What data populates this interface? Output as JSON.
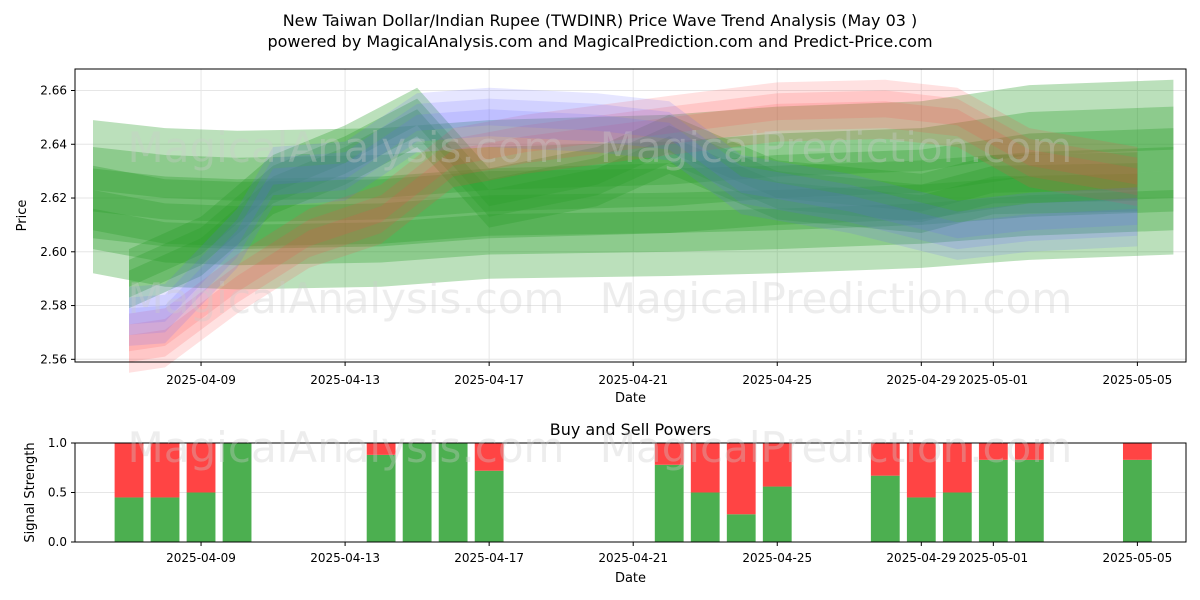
{
  "title_line1": "New Taiwan Dollar/Indian Rupee (TWDINR) Price Wave Trend Analysis (May 03 )",
  "title_line2": "powered by MagicalAnalysis.com and MagicalPrediction.com and Predict-Price.com",
  "watermarks": [
    "MagicalAnalysis.com",
    "MagicalPrediction.com"
  ],
  "colors": {
    "green": "#2ca02c",
    "red": "#ff4444",
    "blue": "#6666ff",
    "bar_green": "#4caf50",
    "bar_red": "#ff4444"
  },
  "chart_data": [
    {
      "type": "area",
      "title": "",
      "xlabel": "Date",
      "ylabel": "Price",
      "x_ticks": [
        "2025-04-09",
        "2025-04-13",
        "2025-04-17",
        "2025-04-21",
        "2025-04-25",
        "2025-04-29",
        "2025-05-01",
        "2025-05-05"
      ],
      "y_ticks": [
        "2.56",
        "2.58",
        "2.60",
        "2.62",
        "2.64",
        "2.66"
      ],
      "xlim": [
        "2025-04-05",
        "2025-05-06"
      ],
      "ylim": [
        2.559,
        2.668
      ],
      "grid": true,
      "series": [
        {
          "color": "green",
          "points": [
            [
              "2025-04-06",
              2.627
            ],
            [
              "2025-04-08",
              2.624
            ],
            [
              "2025-04-10",
              2.623
            ],
            [
              "2025-04-14",
              2.624
            ],
            [
              "2025-04-17",
              2.627
            ],
            [
              "2025-04-22",
              2.629
            ],
            [
              "2025-04-25",
              2.632
            ],
            [
              "2025-04-29",
              2.634
            ],
            [
              "2025-05-02",
              2.64
            ],
            [
              "2025-05-06",
              2.642
            ]
          ],
          "bands": [
            0.004,
            0.012,
            0.022
          ]
        },
        {
          "color": "green",
          "points": [
            [
              "2025-04-06",
              2.612
            ],
            [
              "2025-04-08",
              2.607
            ],
            [
              "2025-04-10",
              2.606
            ],
            [
              "2025-04-14",
              2.607
            ],
            [
              "2025-04-17",
              2.61
            ],
            [
              "2025-04-22",
              2.611
            ],
            [
              "2025-04-25",
              2.612
            ],
            [
              "2025-04-29",
              2.614
            ],
            [
              "2025-05-02",
              2.617
            ],
            [
              "2025-05-06",
              2.619
            ]
          ],
          "bands": [
            0.004,
            0.011,
            0.02
          ]
        },
        {
          "color": "green",
          "points": [
            [
              "2025-04-07",
              2.59
            ],
            [
              "2025-04-09",
              2.602
            ],
            [
              "2025-04-11",
              2.625
            ],
            [
              "2025-04-13",
              2.636
            ],
            [
              "2025-04-15",
              2.65
            ],
            [
              "2025-04-17",
              2.62
            ],
            [
              "2025-04-20",
              2.628
            ],
            [
              "2025-04-22",
              2.64
            ],
            [
              "2025-04-25",
              2.623
            ],
            [
              "2025-04-29",
              2.618
            ],
            [
              "2025-05-01",
              2.625
            ],
            [
              "2025-05-05",
              2.626
            ]
          ],
          "bands": [
            0.003,
            0.007,
            0.011
          ]
        },
        {
          "color": "red",
          "points": [
            [
              "2025-04-07",
              2.566
            ],
            [
              "2025-04-08",
              2.568
            ],
            [
              "2025-04-10",
              2.588
            ],
            [
              "2025-04-12",
              2.605
            ],
            [
              "2025-04-14",
              2.614
            ],
            [
              "2025-04-16",
              2.635
            ],
            [
              "2025-04-18",
              2.64
            ],
            [
              "2025-04-22",
              2.647
            ],
            [
              "2025-04-25",
              2.652
            ],
            [
              "2025-04-28",
              2.653
            ],
            [
              "2025-04-30",
              2.65
            ],
            [
              "2025-05-02",
              2.635
            ],
            [
              "2025-05-05",
              2.628
            ]
          ],
          "bands": [
            0.003,
            0.007,
            0.011
          ]
        },
        {
          "color": "blue",
          "points": [
            [
              "2025-04-07",
              2.576
            ],
            [
              "2025-04-08",
              2.577
            ],
            [
              "2025-04-10",
              2.605
            ],
            [
              "2025-04-11",
              2.628
            ],
            [
              "2025-04-13",
              2.63
            ],
            [
              "2025-04-15",
              2.648
            ],
            [
              "2025-04-17",
              2.65
            ],
            [
              "2025-04-20",
              2.648
            ],
            [
              "2025-04-22",
              2.645
            ],
            [
              "2025-04-24",
              2.625
            ],
            [
              "2025-04-27",
              2.618
            ],
            [
              "2025-04-30",
              2.608
            ],
            [
              "2025-05-02",
              2.611
            ],
            [
              "2025-05-05",
              2.613
            ]
          ],
          "bands": [
            0.003,
            0.007,
            0.011
          ]
        }
      ]
    },
    {
      "type": "bar",
      "title": "Buy and Sell Powers",
      "xlabel": "Date",
      "ylabel": "Signal Strength",
      "x_ticks": [
        "2025-04-09",
        "2025-04-13",
        "2025-04-17",
        "2025-04-21",
        "2025-04-25",
        "2025-04-29",
        "2025-05-01",
        "2025-05-05"
      ],
      "y_ticks": [
        "0.0",
        "0.5",
        "1.0"
      ],
      "xlim": [
        "2025-04-05",
        "2025-05-06"
      ],
      "ylim": [
        0,
        1
      ],
      "grid": true,
      "series": [
        {
          "name": "buy",
          "color": "bar_green"
        },
        {
          "name": "sell",
          "color": "bar_red"
        }
      ],
      "dates": [
        "2025-04-07",
        "2025-04-08",
        "2025-04-09",
        "2025-04-10",
        "2025-04-14",
        "2025-04-15",
        "2025-04-16",
        "2025-04-17",
        "2025-04-22",
        "2025-04-23",
        "2025-04-24",
        "2025-04-25",
        "2025-04-28",
        "2025-04-29",
        "2025-04-30",
        "2025-05-01",
        "2025-05-02",
        "2025-05-05"
      ],
      "buy": [
        0.45,
        0.45,
        0.5,
        1.0,
        0.88,
        1.0,
        1.0,
        0.72,
        0.78,
        0.5,
        0.28,
        0.56,
        0.67,
        0.45,
        0.5,
        0.83,
        0.83,
        0.83
      ],
      "sell": [
        0.55,
        0.55,
        0.5,
        0.0,
        0.12,
        0.0,
        0.0,
        0.28,
        0.22,
        0.5,
        0.72,
        0.44,
        0.33,
        0.55,
        0.5,
        0.17,
        0.17,
        0.17
      ]
    }
  ]
}
